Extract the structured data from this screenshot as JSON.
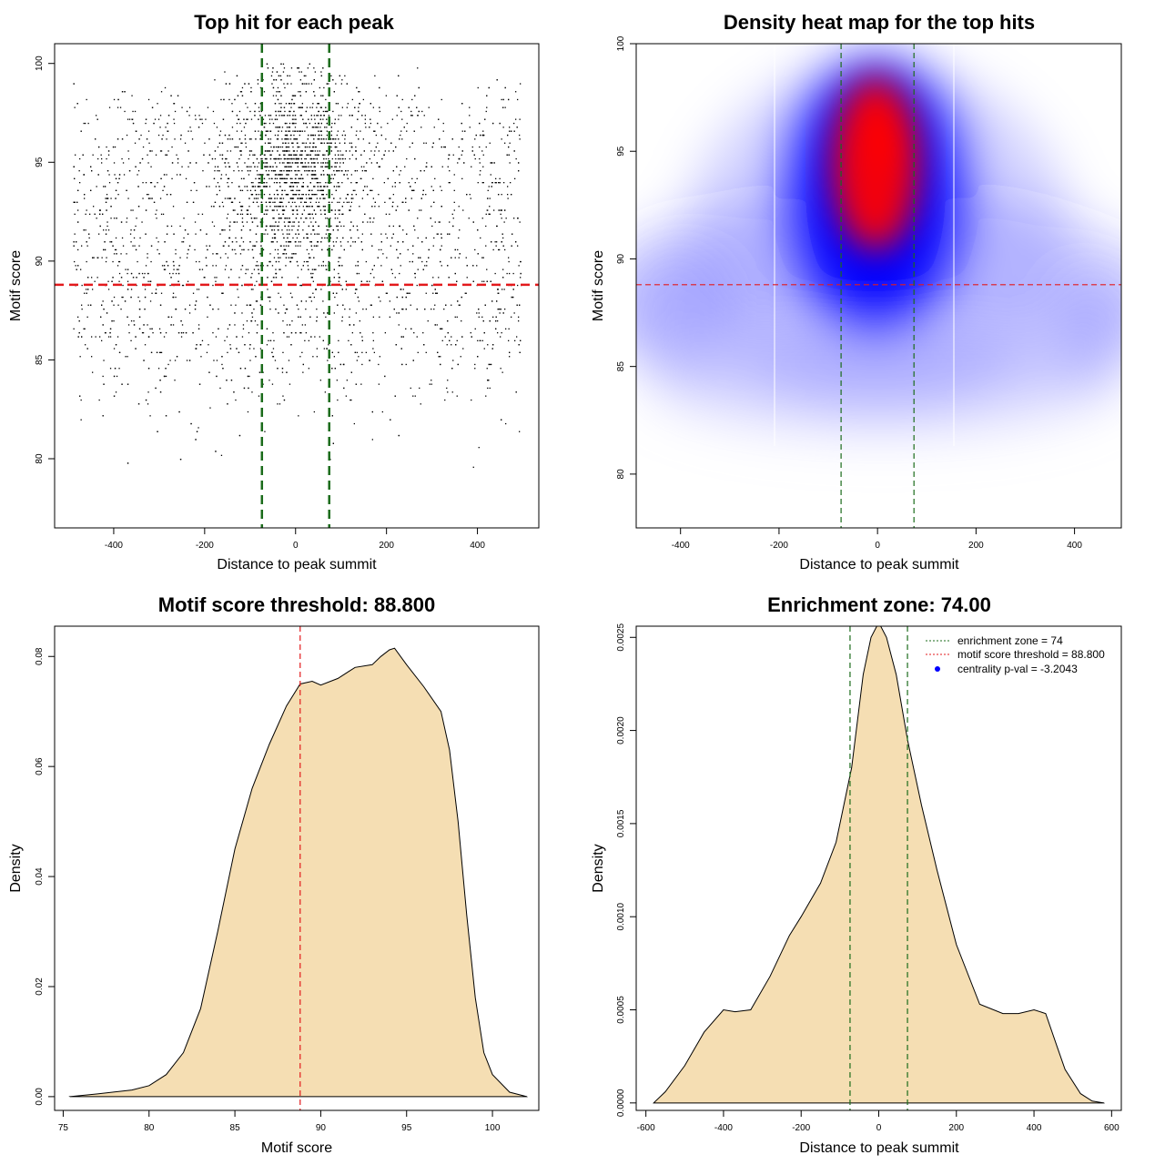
{
  "colors": {
    "points": "#000000",
    "threshold_line": "#e31a1c",
    "zone_line": "#1a6b1a",
    "density_fill": "#f5deb3",
    "heat_low": "#ffffff",
    "heat_mid": "#0000ff",
    "heat_high": "#ff0000",
    "centrality_marker": "#0000ff"
  },
  "chart_data": [
    {
      "type": "scatter",
      "title": "Top hit for each peak",
      "xlabel": "Distance to peak summit",
      "ylabel": "Motif score",
      "xlim": [
        -530,
        535
      ],
      "ylim": [
        76.5,
        101
      ],
      "xticks": [
        -400,
        -200,
        0,
        200,
        400
      ],
      "yticks": [
        80,
        85,
        90,
        95,
        100
      ],
      "grid": false,
      "point_count_approx": 4500,
      "distribution": {
        "uniform_background_x": [
          -490,
          495
        ],
        "central_cluster_center_x": 0,
        "central_cluster_center_y": 94.5,
        "score_range": [
          77.5,
          100
        ]
      },
      "hlines": [
        {
          "y": 88.8,
          "color": "threshold_line",
          "style": "dashed"
        }
      ],
      "vlines": [
        {
          "x": -74,
          "color": "zone_line",
          "style": "dashed"
        },
        {
          "x": 74,
          "color": "zone_line",
          "style": "dashed"
        }
      ]
    },
    {
      "type": "heatmap",
      "title": "Density heat map for the top hits",
      "xlabel": "Distance to peak summit",
      "ylabel": "Motif score",
      "xlim": [
        -490,
        495
      ],
      "ylim": [
        77.5,
        100
      ],
      "xticks": [
        -400,
        -200,
        0,
        200,
        400
      ],
      "yticks": [
        80,
        85,
        90,
        95,
        100
      ],
      "grid": false,
      "hotspot": {
        "x": -5,
        "y": 94.5
      },
      "hlines": [
        {
          "y": 88.8,
          "color": "threshold_line",
          "style": "dashed"
        }
      ],
      "vlines": [
        {
          "x": -74,
          "color": "zone_line",
          "style": "dashed"
        },
        {
          "x": 74,
          "color": "zone_line",
          "style": "dashed"
        }
      ]
    },
    {
      "type": "area",
      "title": "Motif score threshold: 88.800",
      "xlabel": "Motif score",
      "ylabel": "Density",
      "xlim": [
        74.5,
        102.7
      ],
      "ylim": [
        -0.0025,
        0.0855
      ],
      "xticks": [
        75,
        80,
        85,
        90,
        95,
        100
      ],
      "yticks": [
        0.0,
        0.02,
        0.04,
        0.06,
        0.08
      ],
      "ytick_labels": [
        "0.00",
        "0.02",
        "0.04",
        "0.06",
        "0.08"
      ],
      "grid": false,
      "x": [
        75.4,
        77,
        79,
        80,
        81,
        82,
        83,
        84,
        85,
        86,
        87,
        88,
        88.8,
        89.5,
        90,
        91,
        92,
        93,
        93.5,
        94,
        94.3,
        95,
        96,
        97,
        97.5,
        98,
        98.5,
        99,
        99.5,
        100,
        101,
        102
      ],
      "y": [
        0.0,
        0.0005,
        0.0012,
        0.002,
        0.004,
        0.008,
        0.016,
        0.03,
        0.045,
        0.056,
        0.064,
        0.071,
        0.075,
        0.0755,
        0.0748,
        0.076,
        0.078,
        0.0785,
        0.08,
        0.0812,
        0.0815,
        0.0785,
        0.0745,
        0.07,
        0.063,
        0.05,
        0.033,
        0.018,
        0.008,
        0.004,
        0.0008,
        0.0
      ],
      "vlines": [
        {
          "x": 88.8,
          "color": "threshold_line",
          "style": "dashed"
        }
      ]
    },
    {
      "type": "area",
      "title": "Enrichment zone: 74.00",
      "xlabel": "Distance to peak summit",
      "ylabel": "Density",
      "xlim": [
        -625,
        625
      ],
      "ylim": [
        -4e-05,
        0.00256
      ],
      "xticks": [
        -600,
        -400,
        -200,
        0,
        200,
        400,
        600
      ],
      "yticks": [
        0.0,
        0.0005,
        0.001,
        0.0015,
        0.002,
        0.0025
      ],
      "ytick_labels": [
        "0.0000",
        "0.0005",
        "0.0010",
        "0.0015",
        "0.0020",
        "0.0025"
      ],
      "grid": false,
      "x": [
        -580,
        -550,
        -500,
        -450,
        -400,
        -370,
        -330,
        -280,
        -230,
        -200,
        -150,
        -110,
        -70,
        -40,
        -20,
        0,
        20,
        45,
        74,
        110,
        150,
        200,
        260,
        320,
        360,
        400,
        430,
        460,
        480,
        520,
        550,
        580
      ],
      "y": [
        0.0,
        6e-05,
        0.0002,
        0.00038,
        0.0005,
        0.00049,
        0.0005,
        0.00068,
        0.0009,
        0.001,
        0.00118,
        0.0014,
        0.0018,
        0.0023,
        0.0025,
        0.00258,
        0.0025,
        0.0023,
        0.00195,
        0.0016,
        0.00125,
        0.00085,
        0.00053,
        0.00048,
        0.00048,
        0.0005,
        0.00048,
        0.0003,
        0.00018,
        5e-05,
        1e-05,
        0.0
      ],
      "vlines": [
        {
          "x": -74,
          "color": "zone_line",
          "style": "dashed"
        },
        {
          "x": 74,
          "color": "zone_line",
          "style": "dashed"
        }
      ],
      "legend": {
        "placement": "top-right",
        "entries": [
          {
            "label": "enrichment zone = 74",
            "kind": "dotted-line",
            "color": "zone_line"
          },
          {
            "label": "motif score threshold = 88.800",
            "kind": "dotted-line",
            "color": "threshold_line"
          },
          {
            "label": "centrality p-val = -3.2043",
            "kind": "dot",
            "color": "centrality_marker"
          }
        ]
      }
    }
  ]
}
